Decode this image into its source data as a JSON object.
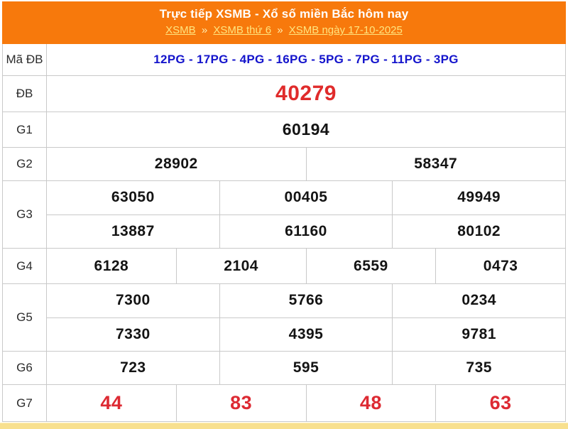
{
  "header": {
    "title": "Trực tiếp XSMB - Xổ số miền Bắc hôm nay",
    "separator": "»",
    "breadcrumb": [
      {
        "label": "XSMB"
      },
      {
        "label": "XSMB thứ 6"
      },
      {
        "label": "XSMB ngày 17-10-2025"
      }
    ]
  },
  "colors": {
    "header_background": "#f7790c",
    "header_title": "#ffffff",
    "breadcrumb_link": "#ffe57f",
    "special_code_blue": "#1414cc",
    "jackpot_red": "#e02b2b",
    "g7_red": "#dd2a33",
    "number_black": "#141414",
    "grid_border": "#c9c9c9",
    "bottom_strip": "#f8e08e"
  },
  "results": {
    "ma_db": {
      "label": "Mã ĐB",
      "value": "12PG - 17PG - 4PG - 16PG - 5PG - 7PG - 11PG - 3PG"
    },
    "db": {
      "label": "ĐB",
      "value": "40279"
    },
    "g1": {
      "label": "G1",
      "value": "60194"
    },
    "g2": {
      "label": "G2",
      "values": [
        "28902",
        "58347"
      ]
    },
    "g3": {
      "label": "G3",
      "rows": [
        [
          "63050",
          "00405",
          "49949"
        ],
        [
          "13887",
          "61160",
          "80102"
        ]
      ]
    },
    "g4": {
      "label": "G4",
      "values": [
        "6128",
        "2104",
        "6559",
        "0473"
      ]
    },
    "g5": {
      "label": "G5",
      "rows": [
        [
          "7300",
          "5766",
          "0234"
        ],
        [
          "7330",
          "4395",
          "9781"
        ]
      ]
    },
    "g6": {
      "label": "G6",
      "values": [
        "723",
        "595",
        "735"
      ]
    },
    "g7": {
      "label": "G7",
      "values": [
        "44",
        "83",
        "48",
        "63"
      ]
    }
  }
}
